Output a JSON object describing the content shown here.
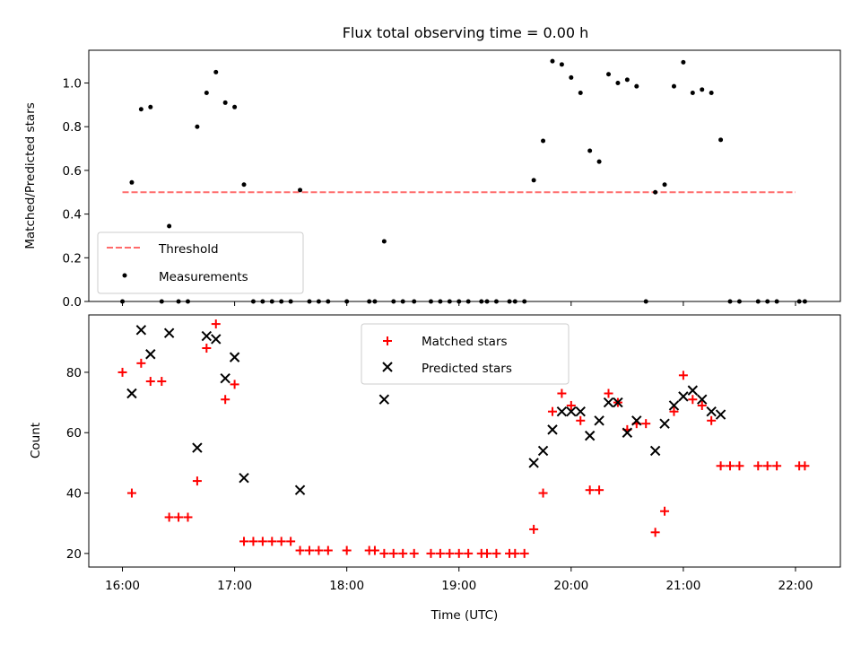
{
  "title": "Flux total observing time = 0.00 h",
  "colors": {
    "threshold": "#ff6b6b",
    "measurement": "#000000",
    "matched": "#ff0000",
    "predicted": "#000000"
  },
  "chart_data": [
    {
      "type": "scatter",
      "ylabel": "Matched/Predicted stars",
      "xlim": [
        "15:42",
        "22:24"
      ],
      "ylim": [
        0,
        1.15
      ],
      "y_ticks": [
        "0.0",
        "0.2",
        "0.4",
        "0.6",
        "0.8",
        "1.0"
      ],
      "legend": {
        "placement": "lower-left",
        "entries": [
          "Threshold",
          "Measurements"
        ]
      },
      "threshold": {
        "name": "Threshold",
        "value": 0.5,
        "x_start": "16:00",
        "x_end": "22:00"
      },
      "series": [
        {
          "name": "Measurements",
          "points": [
            [
              "16:00",
              0
            ],
            [
              "16:05",
              0.545
            ],
            [
              "16:10",
              0.88
            ],
            [
              "16:15",
              0.89
            ],
            [
              "16:21",
              0
            ],
            [
              "16:25",
              0.345
            ],
            [
              "16:30",
              0
            ],
            [
              "16:35",
              0
            ],
            [
              "16:40",
              0.8
            ],
            [
              "16:45",
              0.955
            ],
            [
              "16:50",
              1.05
            ],
            [
              "16:55",
              0.91
            ],
            [
              "17:00",
              0.89
            ],
            [
              "17:05",
              0.535
            ],
            [
              "17:10",
              0
            ],
            [
              "17:15",
              0
            ],
            [
              "17:20",
              0
            ],
            [
              "17:25",
              0
            ],
            [
              "17:30",
              0
            ],
            [
              "17:35",
              0.51
            ],
            [
              "17:40",
              0
            ],
            [
              "17:45",
              0
            ],
            [
              "17:50",
              0
            ],
            [
              "18:00",
              0
            ],
            [
              "18:12",
              0
            ],
            [
              "18:15",
              0
            ],
            [
              "18:20",
              0.275
            ],
            [
              "18:25",
              0
            ],
            [
              "18:30",
              0
            ],
            [
              "18:36",
              0
            ],
            [
              "18:45",
              0
            ],
            [
              "18:50",
              0
            ],
            [
              "18:55",
              0
            ],
            [
              "19:00",
              0
            ],
            [
              "19:05",
              0
            ],
            [
              "19:12",
              0
            ],
            [
              "19:15",
              0
            ],
            [
              "19:20",
              0
            ],
            [
              "19:27",
              0
            ],
            [
              "19:30",
              0
            ],
            [
              "19:35",
              0
            ],
            [
              "19:40",
              0.555
            ],
            [
              "19:45",
              0.735
            ],
            [
              "19:50",
              1.1
            ],
            [
              "19:55",
              1.085
            ],
            [
              "20:00",
              1.025
            ],
            [
              "20:05",
              0.955
            ],
            [
              "20:10",
              0.69
            ],
            [
              "20:15",
              0.64
            ],
            [
              "20:20",
              1.04
            ],
            [
              "20:25",
              1.0
            ],
            [
              "20:30",
              1.015
            ],
            [
              "20:35",
              0.985
            ],
            [
              "20:40",
              0
            ],
            [
              "20:45",
              0.5
            ],
            [
              "20:50",
              0.535
            ],
            [
              "20:55",
              0.985
            ],
            [
              "21:00",
              1.095
            ],
            [
              "21:05",
              0.955
            ],
            [
              "21:10",
              0.97
            ],
            [
              "21:15",
              0.955
            ],
            [
              "21:20",
              0.74
            ],
            [
              "21:25",
              0
            ],
            [
              "21:30",
              0
            ],
            [
              "21:40",
              0
            ],
            [
              "21:45",
              0
            ],
            [
              "21:50",
              0
            ],
            [
              "22:02",
              0
            ],
            [
              "22:05",
              0
            ]
          ]
        }
      ]
    },
    {
      "type": "scatter",
      "xlabel": "Time (UTC)",
      "ylabel": "Count",
      "xlim": [
        "15:42",
        "22:24"
      ],
      "ylim": [
        15.5,
        99
      ],
      "x_ticks": [
        "16:00",
        "17:00",
        "18:00",
        "19:00",
        "20:00",
        "21:00",
        "22:00"
      ],
      "y_ticks": [
        "20",
        "40",
        "60",
        "80"
      ],
      "legend": {
        "placement": "upper-center",
        "entries": [
          "Matched stars",
          "Predicted stars"
        ]
      },
      "series": [
        {
          "name": "Matched stars",
          "marker": "+",
          "points": [
            [
              "16:00",
              80
            ],
            [
              "16:05",
              40
            ],
            [
              "16:10",
              83
            ],
            [
              "16:15",
              77
            ],
            [
              "16:21",
              77
            ],
            [
              "16:25",
              32
            ],
            [
              "16:30",
              32
            ],
            [
              "16:35",
              32
            ],
            [
              "16:40",
              44
            ],
            [
              "16:45",
              88
            ],
            [
              "16:50",
              96
            ],
            [
              "16:55",
              71
            ],
            [
              "17:00",
              76
            ],
            [
              "17:05",
              24
            ],
            [
              "17:10",
              24
            ],
            [
              "17:15",
              24
            ],
            [
              "17:20",
              24
            ],
            [
              "17:25",
              24
            ],
            [
              "17:30",
              24
            ],
            [
              "17:35",
              21
            ],
            [
              "17:40",
              21
            ],
            [
              "17:45",
              21
            ],
            [
              "17:50",
              21
            ],
            [
              "18:00",
              21
            ],
            [
              "18:12",
              21
            ],
            [
              "18:15",
              21
            ],
            [
              "18:20",
              20
            ],
            [
              "18:25",
              20
            ],
            [
              "18:30",
              20
            ],
            [
              "18:36",
              20
            ],
            [
              "18:45",
              20
            ],
            [
              "18:50",
              20
            ],
            [
              "18:55",
              20
            ],
            [
              "19:00",
              20
            ],
            [
              "19:05",
              20
            ],
            [
              "19:12",
              20
            ],
            [
              "19:15",
              20
            ],
            [
              "19:20",
              20
            ],
            [
              "19:27",
              20
            ],
            [
              "19:30",
              20
            ],
            [
              "19:35",
              20
            ],
            [
              "19:40",
              28
            ],
            [
              "19:45",
              40
            ],
            [
              "19:50",
              67
            ],
            [
              "19:55",
              73
            ],
            [
              "20:00",
              69
            ],
            [
              "20:05",
              64
            ],
            [
              "20:10",
              41
            ],
            [
              "20:15",
              41
            ],
            [
              "20:20",
              73
            ],
            [
              "20:25",
              70
            ],
            [
              "20:30",
              61
            ],
            [
              "20:35",
              63
            ],
            [
              "20:40",
              63
            ],
            [
              "20:45",
              27
            ],
            [
              "20:50",
              34
            ],
            [
              "20:55",
              67
            ],
            [
              "21:00",
              79
            ],
            [
              "21:05",
              71
            ],
            [
              "21:10",
              69
            ],
            [
              "21:15",
              64
            ],
            [
              "21:20",
              49
            ],
            [
              "21:25",
              49
            ],
            [
              "21:30",
              49
            ],
            [
              "21:40",
              49
            ],
            [
              "21:45",
              49
            ],
            [
              "21:50",
              49
            ],
            [
              "22:02",
              49
            ],
            [
              "22:05",
              49
            ]
          ]
        },
        {
          "name": "Predicted stars",
          "marker": "x",
          "points": [
            [
              "16:05",
              73
            ],
            [
              "16:10",
              94
            ],
            [
              "16:15",
              86
            ],
            [
              "16:25",
              93
            ],
            [
              "16:40",
              55
            ],
            [
              "16:45",
              92
            ],
            [
              "16:50",
              91
            ],
            [
              "16:55",
              78
            ],
            [
              "17:00",
              85
            ],
            [
              "17:05",
              45
            ],
            [
              "17:35",
              41
            ],
            [
              "18:20",
              71
            ],
            [
              "19:40",
              50
            ],
            [
              "19:45",
              54
            ],
            [
              "19:50",
              61
            ],
            [
              "19:55",
              67
            ],
            [
              "20:00",
              67
            ],
            [
              "20:05",
              67
            ],
            [
              "20:10",
              59
            ],
            [
              "20:15",
              64
            ],
            [
              "20:20",
              70
            ],
            [
              "20:25",
              70
            ],
            [
              "20:30",
              60
            ],
            [
              "20:35",
              64
            ],
            [
              "20:45",
              54
            ],
            [
              "20:50",
              63
            ],
            [
              "20:55",
              69
            ],
            [
              "21:00",
              72
            ],
            [
              "21:05",
              74
            ],
            [
              "21:10",
              71
            ],
            [
              "21:15",
              67
            ],
            [
              "21:20",
              66
            ]
          ]
        }
      ]
    }
  ]
}
